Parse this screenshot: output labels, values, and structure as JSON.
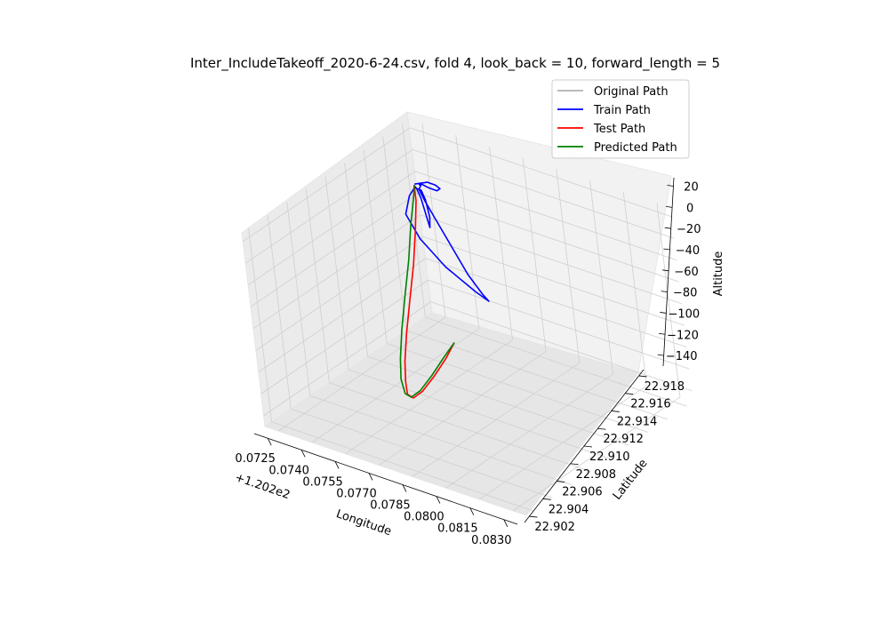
{
  "chart_data": {
    "type": "line",
    "projection": "3d",
    "title": "Inter_IncludeTakeoff_2020-6-24.csv, fold 4, look_back = 10, forward_length = 5",
    "xlabel": "Longitude",
    "ylabel": "Latitude",
    "zlabel": "Altitude",
    "x_offset_label": "+1.202e2",
    "x_ticks": [
      "0.0725",
      "0.0740",
      "0.0755",
      "0.0770",
      "0.0785",
      "0.0800",
      "0.0815",
      "0.0830"
    ],
    "y_ticks": [
      "22.902",
      "22.904",
      "22.906",
      "22.908",
      "22.910",
      "22.912",
      "22.914",
      "22.916",
      "22.918"
    ],
    "z_ticks": [
      "20",
      "0",
      "−20",
      "−40",
      "−60",
      "−80",
      "−100",
      "−120",
      "−140"
    ],
    "xlim": [
      0.0719,
      0.0836
    ],
    "ylim": [
      22.9013,
      22.9187
    ],
    "zlim": [
      -150,
      28
    ],
    "grid": true,
    "legend": "upper-right",
    "legend_entries": [
      "Original Path",
      "Train Path",
      "Test Path",
      "Predicted Path"
    ],
    "series": [
      {
        "name": "Original Path",
        "color": "#b0b0b0",
        "x": [],
        "y": [],
        "z": []
      },
      {
        "name": "Train Path",
        "color": "#0000ff",
        "x": [
          0.07245,
          0.0726,
          0.0728,
          0.0731,
          0.0733,
          0.0732,
          0.0729,
          0.0727,
          0.0726,
          0.0727,
          0.0728,
          0.0735,
          0.075,
          0.0765,
          0.078,
          0.0793,
          0.0798,
          0.079,
          0.077,
          0.075,
          0.0735,
          0.0728,
          0.0726,
          0.0728,
          0.07295,
          0.07305,
          0.073,
          0.0729,
          0.07275,
          0.0726,
          0.0725
        ],
        "y": [
          22.9174,
          22.9177,
          22.9179,
          22.918,
          22.918,
          22.9179,
          22.9177,
          22.9176,
          22.9175,
          22.9174,
          22.917,
          22.916,
          22.914,
          22.912,
          22.91,
          22.9085,
          22.908,
          22.9085,
          22.91,
          22.912,
          22.914,
          22.916,
          22.917,
          22.9172,
          22.9172,
          22.9172,
          22.9172,
          22.9172,
          22.9172,
          22.9172,
          22.9172
        ],
        "z": [
          -20,
          -20,
          -19,
          -20,
          -22,
          -24,
          -22,
          -20,
          -20,
          -20,
          -20,
          -20,
          -20,
          -20,
          -20,
          -20,
          -20,
          -20,
          -20,
          -20,
          -20,
          -20,
          -20,
          -22,
          -30,
          -45,
          -55,
          -45,
          -30,
          -22,
          -20
        ]
      },
      {
        "name": "Test Path",
        "color": "#ff0000",
        "x": [
          0.0725,
          0.0727,
          0.0729,
          0.0731,
          0.0733,
          0.0736,
          0.074,
          0.0745,
          0.075,
          0.0756,
          0.0762,
          0.0768,
          0.0773,
          0.0776
        ],
        "y": [
          22.9172,
          22.9168,
          22.916,
          22.915,
          22.9138,
          22.9125,
          22.9112,
          22.91,
          22.909,
          22.9083,
          22.908,
          22.9081,
          22.9084,
          22.9087
        ],
        "z": [
          -20,
          -30,
          -50,
          -75,
          -100,
          -120,
          -135,
          -143,
          -145,
          -140,
          -128,
          -110,
          -92,
          -78
        ]
      },
      {
        "name": "Predicted Path",
        "color": "#008000",
        "x": [
          0.0725,
          0.0726,
          0.0727,
          0.0729,
          0.0731,
          0.0734,
          0.0738,
          0.0743,
          0.0749,
          0.0755,
          0.0761,
          0.0767,
          0.0772,
          0.0776
        ],
        "y": [
          22.9172,
          22.9168,
          22.916,
          22.915,
          22.9138,
          22.9125,
          22.9112,
          22.91,
          22.909,
          22.9083,
          22.908,
          22.9081,
          22.9084,
          22.9087
        ],
        "z": [
          -20,
          -28,
          -48,
          -72,
          -97,
          -118,
          -134,
          -142,
          -145,
          -140,
          -128,
          -110,
          -92,
          -78
        ]
      }
    ]
  }
}
